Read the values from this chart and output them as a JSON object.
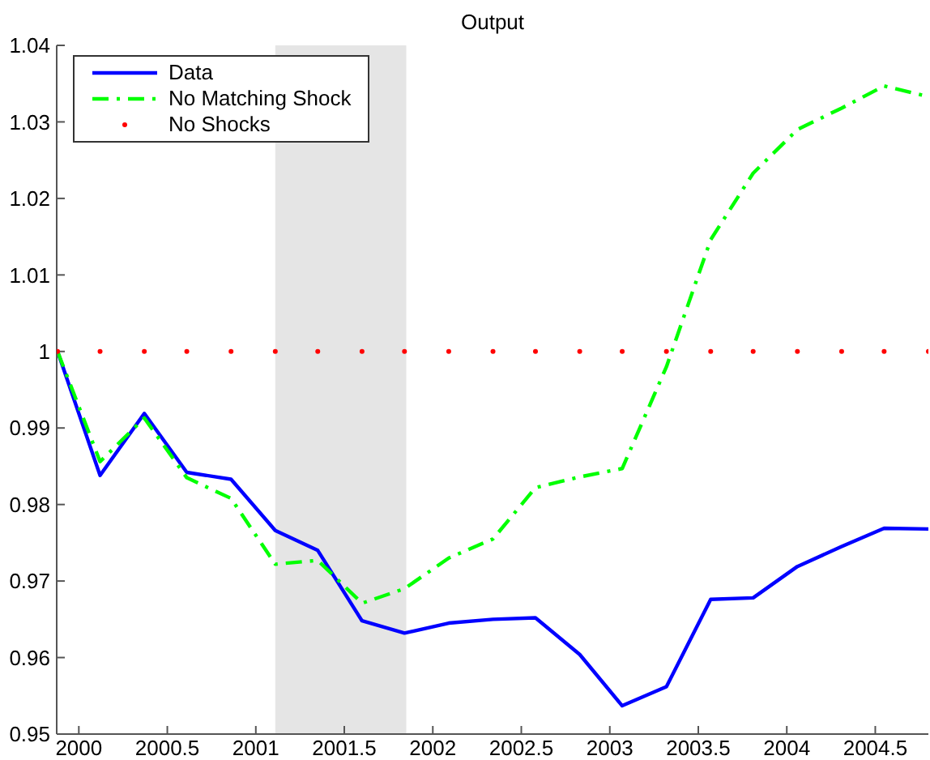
{
  "chart_data": {
    "type": "line",
    "title": "Output",
    "x": [
      1999.88,
      2000.12,
      2000.37,
      2000.61,
      2000.86,
      2001.11,
      2001.35,
      2001.6,
      2001.84,
      2002.09,
      2002.34,
      2002.58,
      2002.83,
      2003.07,
      2003.32,
      2003.57,
      2003.81,
      2004.06,
      2004.31,
      2004.55,
      2004.8
    ],
    "series": [
      {
        "name": "Data",
        "color": "#0000ff",
        "line_style": "solid",
        "marker": "none",
        "values": [
          1.0,
          0.9838,
          0.9919,
          0.9842,
          0.9833,
          0.9766,
          0.974,
          0.9648,
          0.9632,
          0.9645,
          0.965,
          0.9652,
          0.9604,
          0.9537,
          0.9562,
          0.9676,
          0.9678,
          0.9719,
          0.9745,
          0.9769,
          0.9768
        ]
      },
      {
        "name": "No Matching Shock",
        "color": "#00ff00",
        "line_style": "dashed",
        "marker": "none",
        "values": [
          1.0,
          0.9856,
          0.9913,
          0.9835,
          0.9808,
          0.9722,
          0.9727,
          0.9671,
          0.969,
          0.973,
          0.9755,
          0.9822,
          0.9836,
          0.9847,
          0.998,
          1.0146,
          1.0233,
          1.029,
          1.0318,
          1.0347,
          1.0333
        ]
      },
      {
        "name": "No Shocks",
        "type": "scatter",
        "color": "#ff0000",
        "marker": "circle",
        "values": [
          1,
          1,
          1,
          1,
          1,
          1,
          1,
          1,
          1,
          1,
          1,
          1,
          1,
          1,
          1,
          1,
          1,
          1,
          1,
          1,
          1
        ]
      }
    ],
    "xlim": [
      1999.875,
      2004.8
    ],
    "xticks": [
      2000,
      2000.5,
      2001,
      2001.5,
      2002,
      2002.5,
      2003,
      2003.5,
      2004,
      2004.5
    ],
    "ylim": [
      0.95,
      1.04
    ],
    "yticks": [
      0.95,
      0.96,
      0.97,
      0.98,
      0.99,
      1,
      1.01,
      1.02,
      1.03,
      1.04
    ],
    "bands": [
      {
        "axis": "x",
        "from": 2001.11,
        "to": 2001.85,
        "color": "#e5e5e5"
      }
    ],
    "grid": false,
    "legend": "top left"
  }
}
